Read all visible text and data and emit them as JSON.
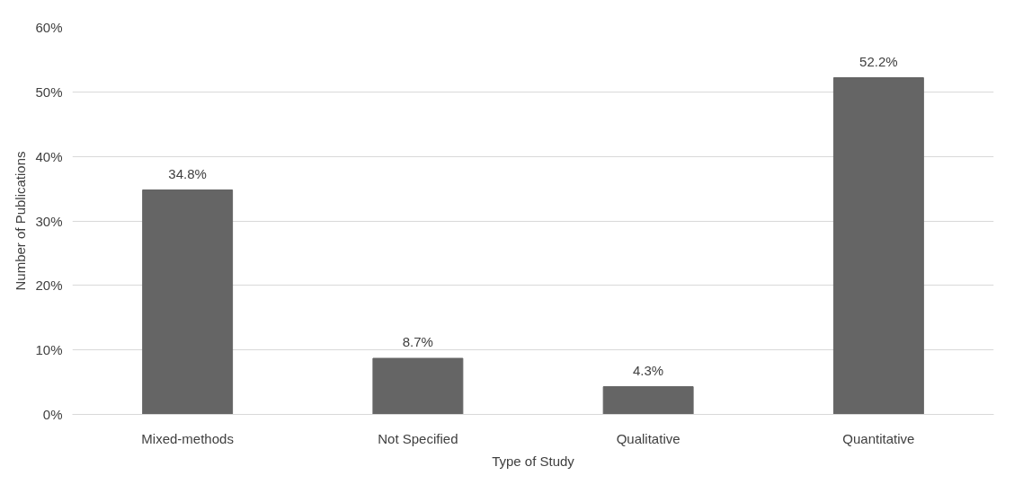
{
  "chart_data": {
    "type": "bar",
    "xlabel": "Type of Study",
    "ylabel": "Number of Publications",
    "categories": [
      "Mixed-methods",
      "Not Specified",
      "Qualitative",
      "Quantitative"
    ],
    "values": [
      34.8,
      8.7,
      4.3,
      52.2
    ],
    "value_labels": [
      "34.8%",
      "8.7%",
      "4.3%",
      "52.2%"
    ],
    "color": "#656565",
    "ylim": [
      0,
      60
    ],
    "yticks": [
      {
        "value": 0,
        "label": "0%"
      },
      {
        "value": 10,
        "label": "10%"
      },
      {
        "value": 20,
        "label": "20%"
      },
      {
        "value": 30,
        "label": "30%"
      },
      {
        "value": 40,
        "label": "40%"
      },
      {
        "value": 50,
        "label": "50%"
      },
      {
        "value": 60,
        "label": "60%"
      }
    ],
    "grid": "y"
  }
}
